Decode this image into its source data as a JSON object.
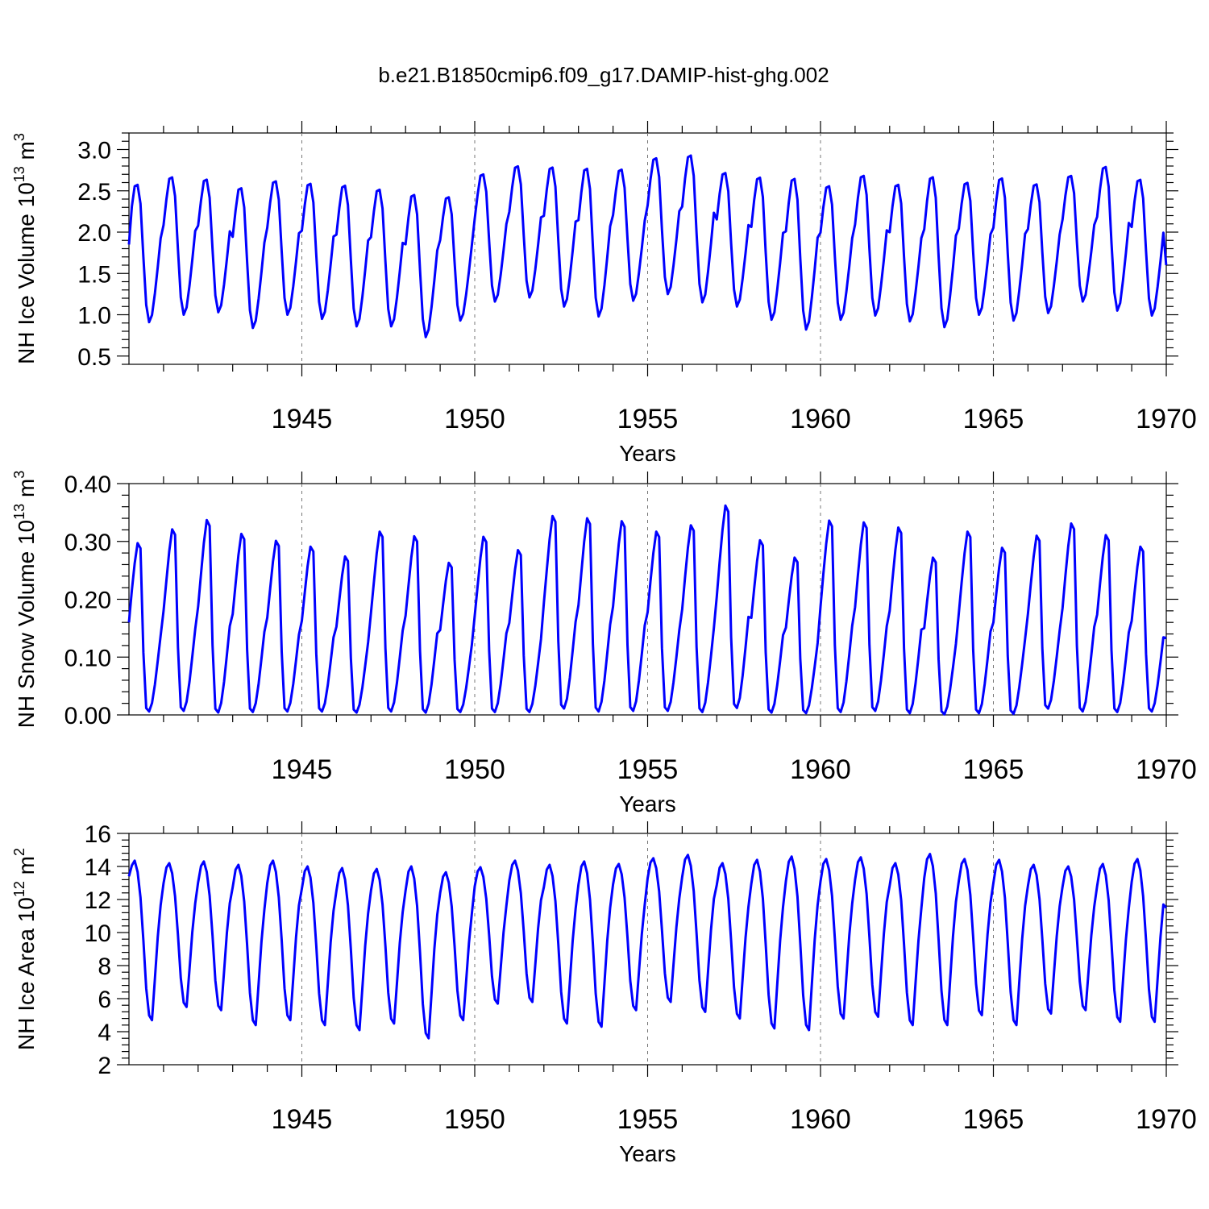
{
  "title": "b.e21.B1850cmip6.f09_g17.DAMIP-hist-ghg.002",
  "colors": {
    "series": "#0000ff",
    "axis": "#000000",
    "grid": "#777777"
  },
  "chart_data": [
    {
      "type": "line",
      "ylabel": "NH Ice Volume 10",
      "ylabel_exp": "13",
      "ylabel_unit": " m",
      "ylabel_unit_exp": "3",
      "xlabel": "Years",
      "xlim": [
        1940,
        1970
      ],
      "ylim": [
        0.4,
        3.2
      ],
      "yticks": [
        0.5,
        1.0,
        1.5,
        2.0,
        2.5,
        3.0
      ],
      "ytick_labels": [
        "0.5",
        "1.0",
        "1.5",
        "2.0",
        "2.5",
        "3.0"
      ],
      "xticks": [
        1945,
        1950,
        1955,
        1960,
        1965,
        1970
      ],
      "xtick_labels": [
        "1945",
        "1950",
        "1955",
        "1960",
        "1965",
        "1970"
      ],
      "x_start": 1940.0,
      "step": 0.08333,
      "annual_max": [
        2.66,
        2.75,
        2.72,
        2.62,
        2.7,
        2.67,
        2.65,
        2.6,
        2.54,
        2.5,
        2.78,
        2.88,
        2.87,
        2.86,
        2.84,
        2.98,
        3.02,
        2.8,
        2.75,
        2.74,
        2.64,
        2.77,
        2.66,
        2.76,
        2.68,
        2.74,
        2.66,
        2.76,
        2.88,
        2.72
      ],
      "annual_min": [
        0.91,
        1.0,
        1.03,
        0.84,
        1.0,
        0.95,
        0.86,
        0.86,
        0.73,
        0.93,
        1.16,
        1.21,
        1.1,
        0.98,
        1.17,
        1.25,
        1.15,
        1.1,
        0.94,
        0.82,
        0.94,
        0.99,
        0.92,
        0.85,
        1.0,
        0.93,
        1.02,
        1.16,
        1.05,
        0.99
      ],
      "start_value": 1.85,
      "end_value": 1.6,
      "shape": "ice"
    },
    {
      "type": "line",
      "ylabel": "NH Snow Volume 10",
      "ylabel_exp": "13",
      "ylabel_unit": " m",
      "ylabel_unit_exp": "3",
      "xlabel": "Years",
      "xlim": [
        1940,
        1970
      ],
      "ylim": [
        0.0,
        0.4
      ],
      "yticks": [
        0.0,
        0.1,
        0.2,
        0.3,
        0.4
      ],
      "ytick_labels": [
        "0.00",
        "0.10",
        "0.20",
        "0.30",
        "0.40"
      ],
      "xticks": [
        1945,
        1950,
        1955,
        1960,
        1965,
        1970
      ],
      "xtick_labels": [
        "1945",
        "1950",
        "1955",
        "1960",
        "1965",
        "1970"
      ],
      "x_start": 1940.0,
      "step": 0.08333,
      "annual_max": [
        0.297,
        0.321,
        0.337,
        0.313,
        0.301,
        0.291,
        0.274,
        0.317,
        0.309,
        0.263,
        0.308,
        0.285,
        0.344,
        0.34,
        0.335,
        0.317,
        0.328,
        0.362,
        0.302,
        0.272,
        0.336,
        0.333,
        0.324,
        0.272,
        0.317,
        0.289,
        0.31,
        0.331,
        0.311,
        0.291
      ],
      "annual_min": [
        0.006,
        0.007,
        0.004,
        0.005,
        0.006,
        0.006,
        0.004,
        0.006,
        0.004,
        0.005,
        0.005,
        0.005,
        0.011,
        0.006,
        0.007,
        0.007,
        0.005,
        0.012,
        0.004,
        0.003,
        0.005,
        0.007,
        0.003,
        0.001,
        0.003,
        0.002,
        0.011,
        0.006,
        0.005,
        0.006
      ],
      "start_value": 0.16,
      "end_value": 0.133,
      "shape": "snow"
    },
    {
      "type": "line",
      "ylabel": "NH Ice Area 10",
      "ylabel_exp": "12",
      "ylabel_unit": " m",
      "ylabel_unit_exp": "2",
      "xlabel": "Years",
      "xlim": [
        1940,
        1970
      ],
      "ylim": [
        2,
        16
      ],
      "yticks": [
        2,
        4,
        6,
        8,
        10,
        12,
        14,
        16
      ],
      "ytick_labels": [
        "2",
        "4",
        "6",
        "8",
        "10",
        "12",
        "14",
        "16"
      ],
      "xticks": [
        1945,
        1950,
        1955,
        1960,
        1965,
        1970
      ],
      "xtick_labels": [
        "1945",
        "1950",
        "1955",
        "1960",
        "1965",
        "1970"
      ],
      "x_start": 1940.0,
      "step": 0.08333,
      "annual_max": [
        14.35,
        14.2,
        14.3,
        14.1,
        14.35,
        14.0,
        13.9,
        13.85,
        14.0,
        13.65,
        13.95,
        14.35,
        14.1,
        14.3,
        14.15,
        14.5,
        14.7,
        14.2,
        14.4,
        14.6,
        14.45,
        14.55,
        14.2,
        14.75,
        14.45,
        14.4,
        14.1,
        14.0,
        14.15,
        14.45
      ],
      "annual_min": [
        4.7,
        5.5,
        5.3,
        4.4,
        4.7,
        4.4,
        4.1,
        4.5,
        3.6,
        4.7,
        5.7,
        5.8,
        4.5,
        4.3,
        5.3,
        5.8,
        5.2,
        4.8,
        4.2,
        4.1,
        4.8,
        4.9,
        4.4,
        4.4,
        5.0,
        4.4,
        5.1,
        5.3,
        4.6,
        4.6
      ],
      "start_value": 13.4,
      "end_value": 11.5,
      "shape": "area"
    }
  ]
}
